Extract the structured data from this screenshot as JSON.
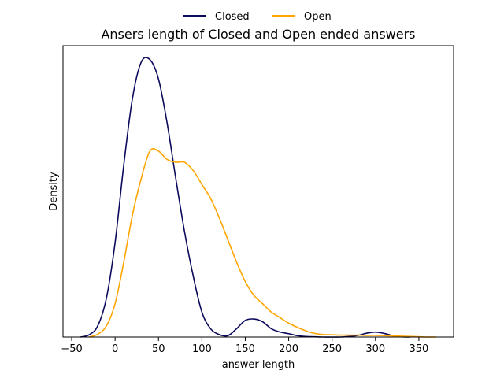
{
  "chart_data": {
    "type": "line",
    "title": "Ansers length of Closed and Open ended answers",
    "xlabel": "answer length",
    "ylabel": "Density",
    "xlim": [
      -60,
      390
    ],
    "ylim": [
      0,
      1.05
    ],
    "xticks": [
      -50,
      0,
      50,
      100,
      150,
      200,
      250,
      300,
      350
    ],
    "xtick_labels": [
      "−50",
      "0",
      "50",
      "100",
      "150",
      "200",
      "250",
      "300",
      "350"
    ],
    "yticks_shown": false,
    "grid": false,
    "legend_position": "top-center",
    "series": [
      {
        "name": "Closed",
        "color": "#0b0a5c",
        "x": [
          -40,
          -30,
          -20,
          -10,
          0,
          10,
          20,
          30,
          40,
          50,
          60,
          70,
          80,
          90,
          100,
          110,
          120,
          130,
          140,
          150,
          160,
          170,
          180,
          190,
          200,
          210,
          220,
          230,
          240,
          250,
          260,
          270,
          280,
          290,
          300,
          310,
          320,
          330,
          340
        ],
        "y": [
          0.0,
          0.008,
          0.04,
          0.14,
          0.34,
          0.62,
          0.86,
          0.99,
          1.0,
          0.93,
          0.77,
          0.57,
          0.38,
          0.22,
          0.09,
          0.03,
          0.009,
          0.005,
          0.03,
          0.06,
          0.065,
          0.055,
          0.03,
          0.018,
          0.012,
          0.005,
          0.002,
          0.001,
          0.0,
          0.0,
          0.0,
          0.002,
          0.006,
          0.014,
          0.018,
          0.013,
          0.005,
          0.001,
          0.0
        ]
      },
      {
        "name": "Open",
        "color": "#ffa500",
        "x": [
          -30,
          -20,
          -10,
          0,
          10,
          20,
          30,
          40,
          50,
          60,
          70,
          80,
          90,
          100,
          110,
          120,
          130,
          140,
          150,
          160,
          170,
          180,
          190,
          200,
          210,
          220,
          230,
          240,
          250,
          260,
          270,
          280,
          290,
          300,
          310,
          320,
          330,
          340,
          350,
          360,
          370
        ],
        "y": [
          0.0,
          0.01,
          0.04,
          0.12,
          0.27,
          0.44,
          0.57,
          0.67,
          0.67,
          0.64,
          0.63,
          0.63,
          0.6,
          0.55,
          0.5,
          0.43,
          0.35,
          0.27,
          0.2,
          0.15,
          0.12,
          0.09,
          0.07,
          0.05,
          0.035,
          0.022,
          0.013,
          0.009,
          0.008,
          0.007,
          0.007,
          0.007,
          0.006,
          0.006,
          0.005,
          0.004,
          0.003,
          0.002,
          0.001,
          0.0,
          0.0
        ]
      }
    ]
  }
}
